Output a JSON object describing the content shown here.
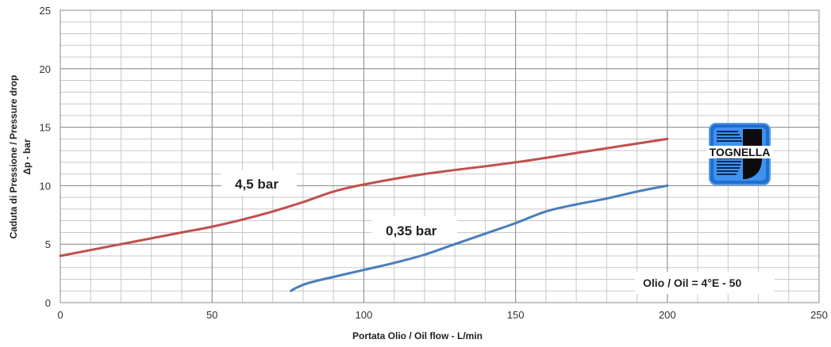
{
  "chart_data": {
    "type": "line",
    "title": "",
    "xlabel": "Portata Olio / Oil flow -  L/min",
    "ylabel_line1": "Caduta di Pressione / Pressure drop",
    "ylabel_line2": "Δp - bar",
    "xlim": [
      0,
      250
    ],
    "ylim": [
      0,
      25
    ],
    "x_ticks": [
      0,
      50,
      100,
      150,
      200,
      250
    ],
    "y_ticks": [
      0,
      5,
      10,
      15,
      20,
      25
    ],
    "x_minor_step": 10,
    "y_minor_step": 1,
    "grid": true,
    "series": [
      {
        "name": "4,5 bar",
        "color": "#c0504d",
        "points": [
          [
            0,
            4
          ],
          [
            20,
            5
          ],
          [
            40,
            6
          ],
          [
            50,
            6.5
          ],
          [
            60,
            7.1
          ],
          [
            70,
            7.8
          ],
          [
            80,
            8.6
          ],
          [
            90,
            9.5
          ],
          [
            100,
            10.1
          ],
          [
            120,
            11
          ],
          [
            150,
            12
          ],
          [
            175,
            13
          ],
          [
            200,
            14
          ]
        ]
      },
      {
        "name": "0,35 bar",
        "color": "#4a7ebb",
        "points": [
          [
            76,
            1
          ],
          [
            78,
            1.3
          ],
          [
            82,
            1.7
          ],
          [
            90,
            2.2
          ],
          [
            100,
            2.8
          ],
          [
            110,
            3.4
          ],
          [
            120,
            4.1
          ],
          [
            130,
            5
          ],
          [
            140,
            5.9
          ],
          [
            150,
            6.8
          ],
          [
            160,
            7.8
          ],
          [
            170,
            8.4
          ],
          [
            180,
            8.9
          ],
          [
            190,
            9.5
          ],
          [
            200,
            10
          ]
        ]
      }
    ],
    "note": "Olio / Oil = 4°E - 50",
    "logo_text": "TOGNELLA"
  }
}
